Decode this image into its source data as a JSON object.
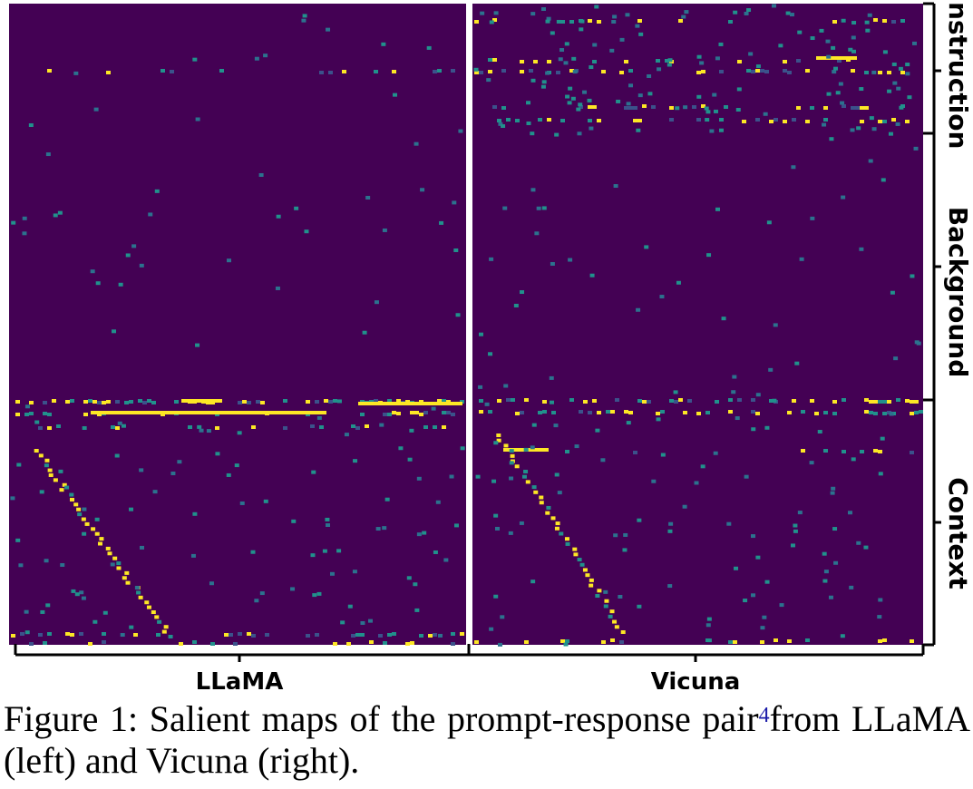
{
  "chart_data": {
    "type": "heatmap",
    "colormap": "viridis",
    "panels": [
      {
        "name": "LLaMA"
      },
      {
        "name": "Vicuna"
      }
    ],
    "row_groups": [
      {
        "label": "Instruction"
      },
      {
        "label": "Background"
      },
      {
        "label": "Context"
      }
    ],
    "colors": {
      "low": "#440154",
      "mid": "#21918c",
      "high": "#fde725"
    }
  },
  "caption": {
    "figure_label": "Figure 1:",
    "text_before_note": "Salient maps of the prompt-response pair",
    "footnote_mark": "4",
    "text_after_note": "from LLaMA (left) and Vicuna (right)."
  }
}
